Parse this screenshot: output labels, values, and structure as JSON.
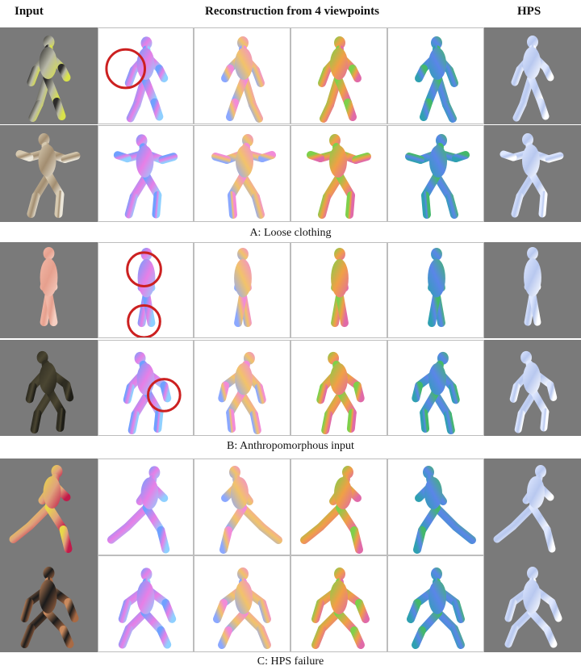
{
  "headers": {
    "input": "Input",
    "reconstruction": "Reconstruction from 4 viewpoints",
    "hps": "HPS"
  },
  "sections": [
    {
      "caption": "A: Loose clothing",
      "rows": [
        {
          "input_colors": [
            "#2c2b2a",
            "#b8b8a8",
            "#d9e24a"
          ]
        },
        {
          "input_colors": [
            "#d6c9b0",
            "#a28d70",
            "#ece7da"
          ]
        }
      ]
    },
    {
      "caption": "B: Anthropomorphous input",
      "rows": [
        {
          "input_colors": [
            "#f1b7a6",
            "#e6a08e",
            "#f6cfc2"
          ]
        },
        {
          "input_colors": [
            "#2f2d22",
            "#4b4632",
            "#1e1d17"
          ]
        }
      ]
    },
    {
      "caption": "C: HPS failure",
      "rows": [
        {
          "input_colors": [
            "#e8d84a",
            "#e0a37c",
            "#c21a4a"
          ]
        },
        {
          "input_colors": [
            "#c98a5e",
            "#1b1b1b",
            "#a96a44"
          ]
        }
      ]
    }
  ],
  "palettes": {
    "view1": [
      "#6fa0ff",
      "#e77fe6",
      "#8fd0ff"
    ],
    "view2": [
      "#f28bd8",
      "#f2c36a",
      "#8ba8ff"
    ],
    "view3": [
      "#7ed04a",
      "#f0a046",
      "#e06aa8"
    ],
    "view4": [
      "#43b86a",
      "#5a86e8",
      "#2fa0b0"
    ],
    "hps": [
      "#dfe8ff",
      "#b8c8ef",
      "#ffffff"
    ]
  }
}
